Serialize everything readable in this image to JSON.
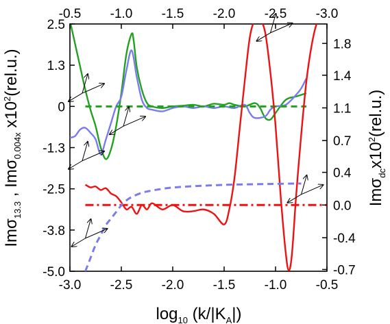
{
  "chart_data": {
    "type": "line",
    "x_bottom": {
      "ticks": [
        "-3.0",
        "-2.5",
        "-2.0",
        "-1.5",
        "-1.0",
        "-0.5"
      ],
      "tick_values": [
        -3.0,
        -2.5,
        -2.0,
        -1.5,
        -1.0,
        -0.5
      ],
      "range": [
        -3.0,
        -0.5
      ],
      "label": {
        "pre": "log",
        "sub": "10",
        "post": " (k/|K",
        "sub2": "A",
        "post2": "|)"
      }
    },
    "x_top": {
      "ticks": [
        "-0.5",
        "-1.0",
        "-1.5",
        "-2.0",
        "-2.5",
        "-3.0"
      ],
      "tick_values": [
        -0.5,
        -1.0,
        -1.5,
        -2.0,
        -2.5,
        -3.0
      ],
      "range": [
        -0.5,
        -3.0
      ]
    },
    "y_left": {
      "ticks": [
        "2.5",
        "1.3",
        "0",
        "-1.3",
        "-2.5",
        "-3.8",
        "-5.0"
      ],
      "tick_values": [
        2.5,
        1.25,
        0,
        -1.25,
        -2.5,
        -3.75,
        -5.0
      ],
      "range": [
        -5.0,
        2.5
      ],
      "label": {
        "a": "Imσ",
        "a_sub": "13.3",
        "b": " , Imσ",
        "b_sub": "0.004x",
        "c": " x10",
        "c_sup": "2",
        "d": "(rel.u.)"
      }
    },
    "y_right": {
      "ticks": [
        "1.8",
        "1.4",
        "1.1",
        "0.7",
        "0.4",
        "0.0",
        "-0.4",
        "-0.7"
      ],
      "tick_values": [
        1.83,
        1.47,
        1.1,
        0.73,
        0.37,
        0.0,
        -0.37,
        -0.73
      ],
      "range": [
        -0.75,
        2.05
      ],
      "label": {
        "a": "Imσ",
        "a_sub": "dc",
        "b": "x10",
        "b_sup": "2",
        "c": "(rel.u.)"
      }
    },
    "series": [
      {
        "color": "#22a022",
        "axis": "left",
        "style": "solid",
        "x": [
          -3.0,
          -2.95,
          -2.9,
          -2.85,
          -2.8,
          -2.75,
          -2.7,
          -2.65,
          -2.6,
          -2.55,
          -2.5,
          -2.45,
          -2.4,
          -2.38,
          -2.35,
          -2.3,
          -2.25,
          -2.2,
          -2.1,
          -2.0,
          -1.9,
          -1.8,
          -1.7,
          -1.6,
          -1.5,
          -1.45,
          -1.4,
          -1.3,
          -1.2,
          -1.15,
          -1.1,
          -1.05,
          -1.0,
          -0.9,
          -0.8,
          -0.7
        ],
        "y": [
          2.6,
          1.9,
          1.2,
          0.5,
          -0.1,
          -0.6,
          -1.25,
          -1.6,
          -1.3,
          -0.6,
          0.4,
          1.6,
          2.2,
          2.0,
          1.2,
          0.5,
          0.1,
          0.0,
          -0.05,
          0.0,
          0.02,
          0.05,
          0.0,
          0.08,
          0.05,
          0.1,
          0.05,
          0.0,
          0.1,
          -0.05,
          -0.35,
          -0.4,
          -0.2,
          0.2,
          0.3,
          0.4
        ]
      },
      {
        "color": "#7b7bee",
        "axis": "left",
        "style": "solid",
        "x": [
          -3.0,
          -2.95,
          -2.9,
          -2.85,
          -2.8,
          -2.75,
          -2.7,
          -2.65,
          -2.6,
          -2.55,
          -2.5,
          -2.45,
          -2.4,
          -2.35,
          -2.3,
          -2.25,
          -2.2,
          -2.1,
          -2.0,
          -1.9,
          -1.8,
          -1.7,
          -1.6,
          -1.5,
          -1.4,
          -1.3,
          -1.25,
          -1.2,
          -1.1,
          -1.05,
          -1.0,
          -0.9,
          -0.8,
          -0.75,
          -0.7
        ],
        "y": [
          -0.95,
          -0.9,
          -0.7,
          -0.65,
          -0.8,
          -1.0,
          -1.45,
          -1.0,
          -0.5,
          0.0,
          0.3,
          1.1,
          1.7,
          0.9,
          0.2,
          -0.05,
          -0.1,
          -0.15,
          -0.05,
          0.0,
          -0.05,
          0.0,
          -0.05,
          0.0,
          -0.05,
          0.05,
          -0.2,
          -0.35,
          -0.3,
          -0.1,
          0.0,
          0.05,
          0.35,
          0.55,
          0.85
        ]
      },
      {
        "color": "#22a022",
        "axis": "left",
        "style": "dashed",
        "x": [
          -2.85,
          -0.7
        ],
        "y": [
          0.0,
          0.0
        ]
      },
      {
        "color": "#ee1111",
        "axis": "right",
        "style": "solid",
        "x": [
          -2.85,
          -2.8,
          -2.75,
          -2.7,
          -2.65,
          -2.6,
          -2.55,
          -2.5,
          -2.45,
          -2.4,
          -2.35,
          -2.3,
          -2.25,
          -2.2,
          -2.1,
          -2.0,
          -1.9,
          -1.8,
          -1.7,
          -1.6,
          -1.5,
          -1.45,
          -1.4,
          -1.35,
          -1.3,
          -1.25,
          -1.2,
          -1.15,
          -1.1,
          -1.05,
          -1.0,
          -0.95,
          -0.9,
          -0.87,
          -0.84,
          -0.8,
          -0.75,
          -0.7,
          -0.65,
          -0.6,
          -0.55
        ],
        "y": [
          0.23,
          0.2,
          0.21,
          0.17,
          0.19,
          0.13,
          0.1,
          0.03,
          -0.05,
          -0.02,
          -0.1,
          0.0,
          -0.05,
          0.02,
          -0.05,
          0.0,
          -0.07,
          -0.07,
          -0.05,
          -0.1,
          -0.22,
          -0.05,
          0.3,
          0.85,
          1.4,
          1.9,
          2.1,
          2.1,
          1.95,
          1.5,
          0.9,
          0.1,
          -0.55,
          -0.74,
          -0.55,
          0.1,
          0.8,
          1.4,
          1.8,
          2.05,
          2.1
        ]
      },
      {
        "color": "#ee1111",
        "axis": "right",
        "style": "dashdot",
        "x": [
          -2.85,
          -0.5
        ],
        "y": [
          0.0,
          0.0
        ]
      },
      {
        "color": "#7b7bee",
        "axis": "left",
        "style": "dashed",
        "x": [
          -2.85,
          -2.8,
          -2.75,
          -2.7,
          -2.65,
          -2.6,
          -2.55,
          -2.5,
          -2.45,
          -2.4,
          -2.3,
          -2.2,
          -2.1,
          -2.0,
          -1.8,
          -1.5,
          -1.2,
          -1.0,
          -0.8,
          -0.75
        ],
        "y": [
          -5.0,
          -4.6,
          -4.2,
          -3.9,
          -3.6,
          -3.4,
          -3.2,
          -3.0,
          -2.85,
          -2.75,
          -2.62,
          -2.55,
          -2.5,
          -2.46,
          -2.42,
          -2.38,
          -2.36,
          -2.35,
          -2.34,
          -2.34
        ]
      }
    ],
    "annotations": [
      {
        "type": "arrow-pair",
        "x": -2.88,
        "y": 0.4
      },
      {
        "type": "arrow-pair",
        "x": -2.48,
        "y": -0.6
      },
      {
        "type": "arrow-pair",
        "x": -2.88,
        "y": -1.65
      },
      {
        "type": "arrow-pair",
        "x": -2.85,
        "y": -4.0
      },
      {
        "type": "arrow-pair",
        "x": -1.05,
        "y": 1.95,
        "axis": "right"
      },
      {
        "type": "arrow-pair",
        "x": -0.75,
        "y": 0.12,
        "axis": "right"
      }
    ],
    "grid": false
  }
}
